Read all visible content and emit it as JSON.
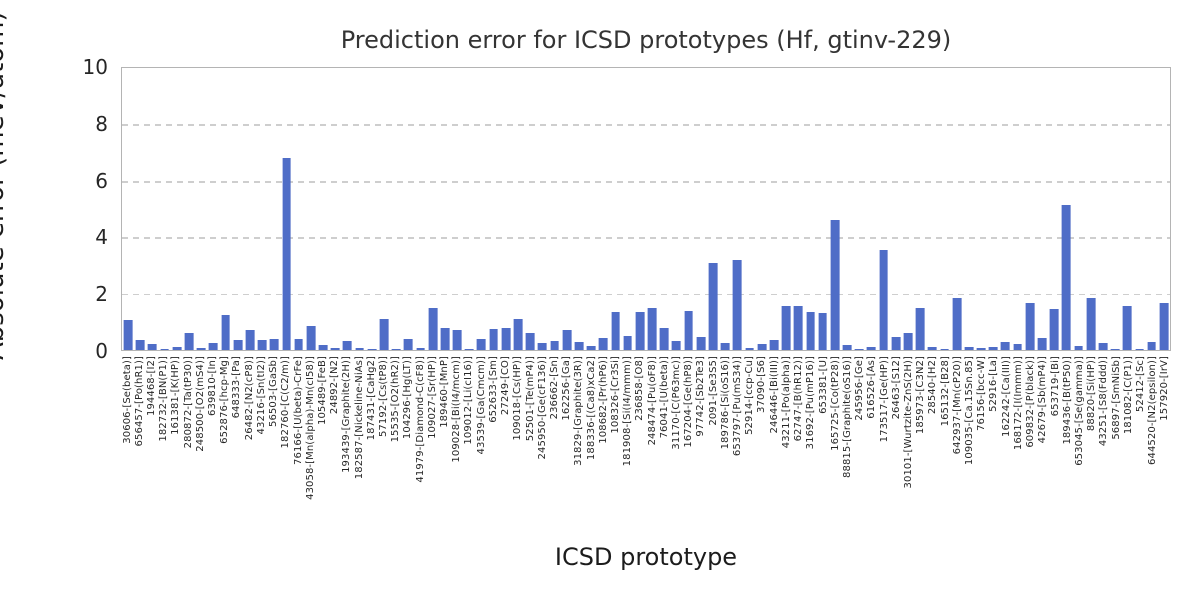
{
  "chart_data": {
    "type": "bar",
    "title": "Prediction error for ICSD prototypes (Hf, gtinv-229)",
    "xlabel": "ICSD prototype",
    "ylabel": "Absolute error (meV/atom)",
    "ylim": [
      0,
      10
    ],
    "yticks": [
      0,
      2,
      4,
      6,
      8,
      10
    ],
    "grid": "horizontal-dashed",
    "legend_position": "none",
    "bar_color": "#4f6dc7",
    "categories": [
      "30606-[Se(beta)]",
      "656457-[Po(hR1)]",
      "194468-[I2]",
      "182732-[BN(P1)]",
      "161381-[K(HP)]",
      "280872-[Ta(tP30)]",
      "248500-[O2(mS4)]",
      "639810-[In]",
      "652876-[hcp-Mg]",
      "648333-[Pa]",
      "26482-[N2(cP8)]",
      "43216-[Sn(tI2)]",
      "56503-[GaSb]",
      "182760-[C(C2/m)]",
      "76166-[U(beta)-CrFe]",
      "43058-[Mn(alpha)-Mn(cI58)]",
      "105489-[FeB]",
      "24892-[N2]",
      "193439-[Graphite(2H)]",
      "182587-[Nickeline-NiAs]",
      "187431-[CaHg2]",
      "57192-[Cs(tP8)]",
      "15535-[O2(hR2)]",
      "104296-[Hg(LT)]",
      "41979-[Diamond-C(cF8)]",
      "109027-[Sr(HP)]",
      "189460-[MnP]",
      "109028-[Bi(I4/mcm)]",
      "109012-[Li(cI16)]",
      "43539-[Ga(Cmcm)]",
      "652633-[Sm]",
      "27249-[CO]",
      "109018-[Cs(HP)]",
      "52501-[Te(mP4)]",
      "245950-[Ge(cF136)]",
      "236662-[Sn]",
      "162256-[Ga]",
      "31829-[Graphite(3R)]",
      "188336-[(Ca8)xCa2]",
      "108682-[Pr(hP6)]",
      "108326-[Cr3Si]",
      "181908-[Si(I4/mmm)]",
      "236858-[O8]",
      "248474-[Pu(oF8)]",
      "76041-[U(beta)]",
      "31170-[C(P63mc)]",
      "167204-[Ge(hP8)]",
      "97742-[Sb2Te3]",
      "2091-[Se3S5]",
      "189786-[Si(oS16)]",
      "653797-[Pu(mS34)]",
      "52914-[ccp-Cu]",
      "37090-[S6]",
      "246446-[Bi(III)]",
      "43211-[Po(alpha)]",
      "62747-[B(hR12)]",
      "31692-[Pu(mP16)]",
      "653381-[U]",
      "165725-[Co(tP28)]",
      "88815-[Graphite(oS16)]",
      "245956-[Ge]",
      "616526-[As]",
      "173517-[Ge(HP)]",
      "26463-[S12]",
      "30101-[Wurtzite-ZnS(2H)]",
      "185973-[C3N2]",
      "28540-[H2]",
      "165132-[B28]",
      "642937-[Mn(cP20)]",
      "109035-[Ca.15Sn.85]",
      "76156-[bcc-W]",
      "52916-[La]",
      "162242-[Ca(III)]",
      "168172-[I(Immm)]",
      "609832-[P(black)]",
      "42679-[Sb(mP4)]",
      "653719-[Bi]",
      "189436-[B(tP50)]",
      "653045-[Se(gamma)]",
      "88820-[Si(HP)]",
      "43251-[S8(Fddd)]",
      "56897-[SmNiSb]",
      "181082-[C(P1)]",
      "52412-[Sc]",
      "644520-[N2(epsilon)]",
      "157920-[IrV]"
    ],
    "values": [
      1.05,
      0.35,
      0.2,
      0.03,
      0.12,
      0.62,
      0.08,
      0.25,
      1.25,
      0.35,
      0.7,
      0.35,
      0.4,
      6.82,
      0.38,
      0.85,
      0.18,
      0.07,
      0.32,
      0.08,
      0.02,
      1.1,
      0.02,
      0.4,
      0.07,
      1.5,
      0.78,
      0.7,
      0.03,
      0.4,
      0.75,
      0.78,
      1.1,
      0.6,
      0.25,
      0.32,
      0.72,
      0.3,
      0.13,
      0.42,
      1.35,
      0.5,
      1.35,
      1.48,
      0.78,
      0.32,
      1.38,
      0.47,
      3.1,
      0.24,
      3.2,
      0.08,
      0.21,
      0.35,
      1.55,
      1.55,
      1.35,
      1.3,
      4.6,
      0.17,
      0.05,
      0.11,
      3.55,
      0.47,
      0.6,
      1.5,
      0.11,
      0.03,
      1.85,
      0.1,
      0.08,
      0.11,
      0.28,
      0.2,
      1.65,
      0.43,
      1.45,
      5.15,
      0.15,
      1.85,
      0.26,
      0.02,
      1.55,
      0.05,
      0.28,
      1.65
    ]
  }
}
